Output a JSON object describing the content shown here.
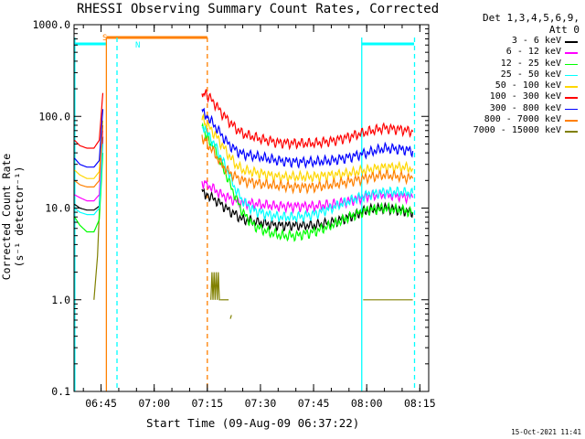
{
  "title": "RHESSI Observing Summary Count Rates, Corrected",
  "detector_info": [
    "Det 1,3,4,5,6,9,",
    "Att 0"
  ],
  "timestamp": "15-Oct-2021 11:41",
  "chart_data": {
    "type": "line",
    "title": "RHESSI Observing Summary Count Rates, Corrected",
    "xlabel": "Start Time (09-Aug-09 06:37:22)",
    "ylabel": "Corrected Count Rate (s⁻¹ detector⁻¹)",
    "y_scale": "log",
    "ylim": [
      0.1,
      1000
    ],
    "xlim": [
      "06:37:22",
      "08:17:30"
    ],
    "x_ticks": [
      "06:45",
      "07:00",
      "07:15",
      "07:30",
      "07:45",
      "08:00",
      "08:15"
    ],
    "x_tick_minutes": [
      405,
      420,
      435,
      450,
      465,
      480,
      495
    ],
    "y_ticks": [
      "0.1",
      "1.0",
      "10.0",
      "100.0",
      "1000.0"
    ],
    "y_tick_values": [
      0.1,
      1,
      10,
      100,
      1000
    ],
    "grid": false,
    "legend_position": "right",
    "series": [
      {
        "name": "3 - 6 keV",
        "color": "#000000",
        "segments": [
          {
            "t": [
              397.5,
              399,
              401,
              403,
              404.5,
              405.5
            ],
            "y": [
              11,
              10,
              9.5,
              9.5,
              10.5,
              60
            ]
          },
          {
            "t": [
              433.5,
              435,
              437,
              439,
              441,
              443,
              445,
              450,
              455,
              460,
              465,
              470,
              475,
              480,
              485,
              490,
              493
            ],
            "y": [
              15,
              14,
              12.5,
              11,
              9.5,
              8.5,
              7.5,
              7,
              6.5,
              6.5,
              6.5,
              7,
              8,
              9.5,
              10,
              9.5,
              9
            ]
          }
        ]
      },
      {
        "name": "6 - 12 keV",
        "color": "#ff00ff",
        "segments": [
          {
            "t": [
              397.5,
              399,
              401,
              403,
              404.5,
              405.5
            ],
            "y": [
              14,
              13,
              12,
              12,
              14,
              70
            ]
          },
          {
            "t": [
              433.5,
              435,
              437,
              439,
              441,
              443,
              445,
              450,
              455,
              460,
              465,
              470,
              475,
              480,
              485,
              490,
              493
            ],
            "y": [
              19,
              18,
              16,
              14,
              13,
              12,
              11.5,
              11,
              10.5,
              10.5,
              10.5,
              11,
              12,
              13.5,
              14,
              13.5,
              13
            ]
          }
        ]
      },
      {
        "name": "12 - 25 keV",
        "color": "#00ff00",
        "segments": [
          {
            "t": [
              397.5,
              399,
              401,
              403,
              404.5,
              405.5
            ],
            "y": [
              8,
              6.5,
              5.5,
              5.5,
              7.5,
              40
            ]
          },
          {
            "t": [
              433.5,
              435,
              437,
              439,
              441,
              443,
              445,
              448,
              452,
              456,
              460,
              465,
              470,
              475,
              480,
              485,
              490,
              493
            ],
            "y": [
              75,
              60,
              45,
              30,
              20,
              13,
              9,
              6.5,
              5.5,
              5,
              5,
              5.5,
              6.5,
              8,
              9.5,
              10,
              9.5,
              9
            ]
          }
        ]
      },
      {
        "name": "25 - 50 keV",
        "color": "#00ffff",
        "segments": [
          {
            "t": [
              397.5,
              399,
              401,
              403,
              404.5,
              405.5
            ],
            "y": [
              10,
              9,
              8.5,
              8.5,
              10,
              50
            ]
          },
          {
            "t": [
              433.5,
              435,
              437,
              439,
              441,
              443,
              445,
              448,
              452,
              456,
              460,
              465,
              470,
              475,
              480,
              485,
              490,
              493
            ],
            "y": [
              80,
              65,
              50,
              35,
              24,
              16,
              12,
              9.5,
              8.5,
              8,
              8,
              8.5,
              10,
              12,
              14,
              15,
              15,
              14.5
            ]
          }
        ]
      },
      {
        "name": "50 - 100 keV",
        "color": "#ffd700",
        "segments": [
          {
            "t": [
              397.5,
              399,
              401,
              403,
              404.5,
              405.5
            ],
            "y": [
              26,
              23,
              21,
              21,
              25,
              90
            ]
          },
          {
            "t": [
              433.5,
              435,
              437,
              439,
              441,
              443,
              445,
              450,
              455,
              460,
              465,
              470,
              475,
              480,
              485,
              490,
              493
            ],
            "y": [
              95,
              80,
              65,
              50,
              38,
              30,
              26,
              24,
              22,
              22,
              22,
              23,
              24,
              26,
              28,
              28,
              27
            ]
          }
        ]
      },
      {
        "name": "100 - 300 keV",
        "color": "#ff0000",
        "segments": [
          {
            "t": [
              397.5,
              399,
              401,
              403,
              404.5,
              405.5
            ],
            "y": [
              55,
              48,
              45,
              45,
              55,
              180
            ]
          },
          {
            "t": [
              433.5,
              435,
              437,
              439,
              441,
              443,
              445,
              450,
              455,
              460,
              465,
              470,
              475,
              480,
              485,
              490,
              493
            ],
            "y": [
              185,
              170,
              140,
              110,
              90,
              75,
              65,
              57,
              52,
              51,
              51,
              54,
              60,
              68,
              75,
              72,
              68
            ]
          }
        ]
      },
      {
        "name": "300 - 800 keV",
        "color": "#0000ff",
        "segments": [
          {
            "t": [
              397.5,
              399,
              401,
              403,
              404.5,
              405.5
            ],
            "y": [
              35,
              30,
              28,
              28,
              33,
              120
            ]
          },
          {
            "t": [
              433.5,
              435,
              437,
              439,
              441,
              443,
              445,
              450,
              455,
              460,
              465,
              470,
              475,
              480,
              485,
              490,
              493
            ],
            "y": [
              115,
              100,
              80,
              63,
              50,
              43,
              39,
              36,
              33,
              32,
              32,
              33,
              36,
              40,
              45,
              44,
              42
            ]
          }
        ]
      },
      {
        "name": "800 - 7000 keV",
        "color": "#ff8000",
        "segments": [
          {
            "t": [
              397.5,
              399,
              401,
              403,
              404.5,
              405.5
            ],
            "y": [
              20,
              18,
              17,
              17,
              20,
              80
            ]
          },
          {
            "t": [
              433.5,
              435,
              437,
              439,
              441,
              443,
              445,
              450,
              455,
              460,
              465,
              470,
              475,
              480,
              485,
              490,
              493
            ],
            "y": [
              60,
              50,
              40,
              30,
              25,
              22,
              20,
              18.5,
              17.5,
              17,
              17,
              18,
              19.5,
              21.5,
              23,
              22,
              21
            ]
          }
        ]
      },
      {
        "name": "7000 - 15000 keV",
        "color": "#808000",
        "segments": [
          {
            "t": [
              403,
              404,
              405.2
            ],
            "y": [
              1.0,
              3,
              40
            ]
          },
          {
            "t": [
              436,
              436.3,
              436.6,
              436.9,
              437.2,
              437.5,
              437.8,
              438.1,
              438.4,
              438.7
            ],
            "y": [
              1.0,
              2,
              1.0,
              2,
              1.0,
              2,
              1.0,
              2,
              1.0,
              1.0
            ]
          },
          {
            "t": [
              438.7,
              441
            ],
            "y": [
              1.0,
              1.0
            ]
          },
          {
            "t": [
              441.5,
              441.8
            ],
            "y": [
              0.62,
              0.68
            ]
          },
          {
            "t": [
              479,
              493
            ],
            "y": [
              1.0,
              1.0
            ]
          }
        ]
      }
    ],
    "markers": [
      {
        "label": "S",
        "color": "#ff8000"
      },
      {
        "label": "N",
        "color": "#00ffff"
      }
    ]
  }
}
